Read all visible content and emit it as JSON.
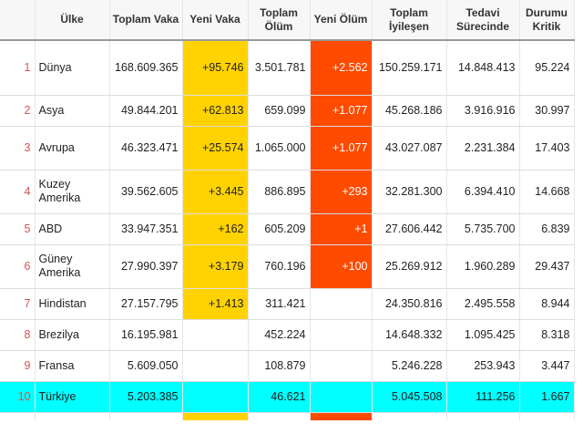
{
  "colors": {
    "new_case_fill": "#ffd200",
    "new_death_fill": "#ff4b00",
    "highlight_row": "#00ffff",
    "rank_text": "#d9534f"
  },
  "headers": {
    "rank": "",
    "country": "Ülke",
    "total_cases": "Toplam Vaka",
    "new_cases": "Yeni Vaka",
    "total_deaths": "Toplam Ölüm",
    "new_deaths": "Yeni Ölüm",
    "total_recovered": "Toplam İyileşen",
    "active": "Tedavi Sürecinde",
    "critical": "Durumu Kritik"
  },
  "rows": [
    {
      "rank": "1",
      "country": "Dünya",
      "total_cases": "168.609.365",
      "new_cases": "+95.746",
      "total_deaths": "3.501.781",
      "new_deaths": "+2.562",
      "total_recovered": "150.259.171",
      "active": "14.848.413",
      "critical": "95.224"
    },
    {
      "rank": "2",
      "country": "Asya",
      "total_cases": "49.844.201",
      "new_cases": "+62.813",
      "total_deaths": "659.099",
      "new_deaths": "+1.077",
      "total_recovered": "45.268.186",
      "active": "3.916.916",
      "critical": "30.997"
    },
    {
      "rank": "3",
      "country": "Avrupa",
      "total_cases": "46.323.471",
      "new_cases": "+25.574",
      "total_deaths": "1.065.000",
      "new_deaths": "+1.077",
      "total_recovered": "43.027.087",
      "active": "2.231.384",
      "critical": "17.403"
    },
    {
      "rank": "4",
      "country": "Kuzey Amerika",
      "total_cases": "39.562.605",
      "new_cases": "+3.445",
      "total_deaths": "886.895",
      "new_deaths": "+293",
      "total_recovered": "32.281.300",
      "active": "6.394.410",
      "critical": "14.668"
    },
    {
      "rank": "5",
      "country": "ABD",
      "total_cases": "33.947.351",
      "new_cases": "+162",
      "total_deaths": "605.209",
      "new_deaths": "+1",
      "total_recovered": "27.606.442",
      "active": "5.735.700",
      "critical": "6.839"
    },
    {
      "rank": "6",
      "country": "Güney Amerika",
      "total_cases": "27.990.397",
      "new_cases": "+3.179",
      "total_deaths": "760.196",
      "new_deaths": "+100",
      "total_recovered": "25.269.912",
      "active": "1.960.289",
      "critical": "29.437"
    },
    {
      "rank": "7",
      "country": "Hindistan",
      "total_cases": "27.157.795",
      "new_cases": "+1.413",
      "total_deaths": "311.421",
      "new_deaths": "",
      "total_recovered": "24.350.816",
      "active": "2.495.558",
      "critical": "8.944"
    },
    {
      "rank": "8",
      "country": "Brezilya",
      "total_cases": "16.195.981",
      "new_cases": "",
      "total_deaths": "452.224",
      "new_deaths": "",
      "total_recovered": "14.648.332",
      "active": "1.095.425",
      "critical": "8.318"
    },
    {
      "rank": "9",
      "country": "Fransa",
      "total_cases": "5.609.050",
      "new_cases": "",
      "total_deaths": "108.879",
      "new_deaths": "",
      "total_recovered": "5.246.228",
      "active": "253.943",
      "critical": "3.447"
    },
    {
      "rank": "10",
      "country": "Türkiye",
      "total_cases": "5.203.385",
      "new_cases": "",
      "total_deaths": "46.621",
      "new_deaths": "",
      "total_recovered": "5.045.508",
      "active": "111.256",
      "critical": "1.667"
    }
  ]
}
